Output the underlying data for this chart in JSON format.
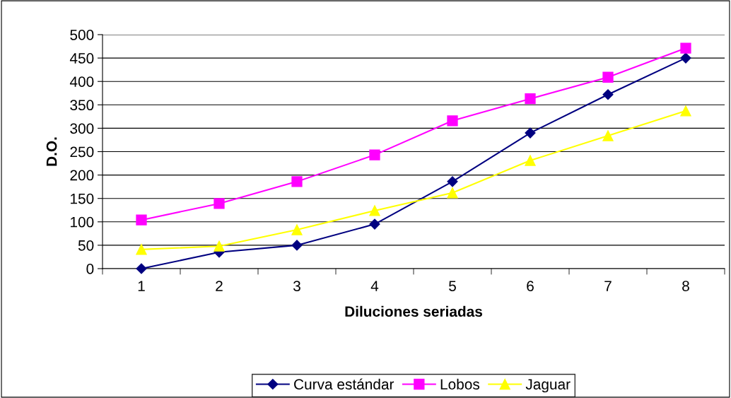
{
  "chart_data": {
    "type": "line",
    "xlabel": "Diluciones seriadas",
    "ylabel": "D.O.",
    "categories": [
      "1",
      "2",
      "3",
      "4",
      "5",
      "6",
      "7",
      "8"
    ],
    "series": [
      {
        "name": "Curva estándar",
        "color": "#000080",
        "marker": "diamond",
        "values": [
          0,
          35,
          50,
          95,
          186,
          290,
          372,
          450
        ]
      },
      {
        "name": "Lobos",
        "color": "#ff00ff",
        "marker": "square",
        "values": [
          104,
          139,
          186,
          243,
          316,
          363,
          409,
          471
        ]
      },
      {
        "name": "Jaguar",
        "color": "#ffff00",
        "marker": "triangle",
        "values": [
          41,
          48,
          83,
          124,
          162,
          231,
          284,
          337
        ]
      }
    ],
    "ylim": [
      0,
      500
    ],
    "yticks": [
      0,
      50,
      100,
      150,
      200,
      250,
      300,
      350,
      400,
      450,
      500
    ],
    "grid": "y",
    "legend": "bottom",
    "line_style": "solid"
  }
}
